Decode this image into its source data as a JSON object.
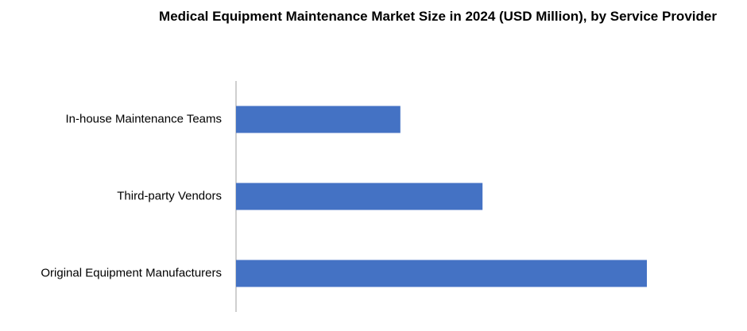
{
  "chart_data": {
    "type": "barh",
    "title": "Medical Equipment Maintenance Market Size in 2024 (USD Million), by Service Provider",
    "categories": [
      "In-house Maintenance Teams",
      "Third-party Vendors",
      "Original Equipment Manufacturers"
    ],
    "values": [
      40,
      60,
      100
    ],
    "color": "#4472c4"
  }
}
